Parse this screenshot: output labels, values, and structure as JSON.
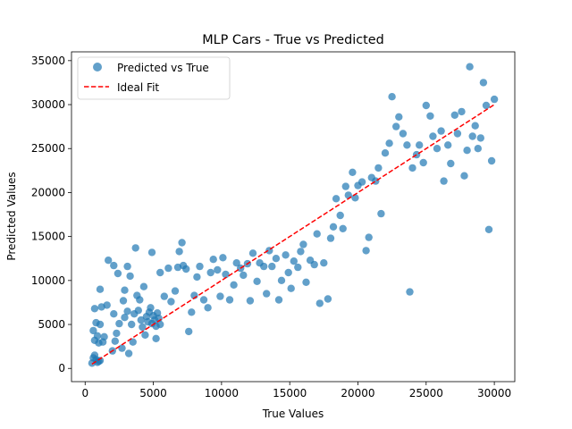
{
  "chart_data": {
    "type": "scatter",
    "title": "MLP Cars - True vs Predicted",
    "xlabel": "True Values",
    "ylabel": "Predicted Values",
    "xlim": [
      -1000,
      31500
    ],
    "ylim": [
      -1500,
      36000
    ],
    "xticks": [
      0,
      5000,
      10000,
      15000,
      20000,
      25000,
      30000
    ],
    "yticks": [
      0,
      5000,
      10000,
      15000,
      20000,
      25000,
      30000,
      35000
    ],
    "grid": false,
    "legend_position": "top-left",
    "series": [
      {
        "name": "Predicted vs True",
        "kind": "scatter",
        "color": "#1f77b4",
        "alpha": 0.7,
        "points": [
          [
            700,
            1500
          ],
          [
            800,
            1000
          ],
          [
            900,
            700
          ],
          [
            1000,
            800
          ],
          [
            500,
            600
          ],
          [
            600,
            1200
          ],
          [
            1100,
            900
          ],
          [
            600,
            4300
          ],
          [
            700,
            3200
          ],
          [
            800,
            5200
          ],
          [
            900,
            3700
          ],
          [
            1000,
            2900
          ],
          [
            1100,
            5000
          ],
          [
            1300,
            3000
          ],
          [
            1400,
            3600
          ],
          [
            1200,
            7000
          ],
          [
            1600,
            7200
          ],
          [
            1100,
            9000
          ],
          [
            700,
            6800
          ],
          [
            1700,
            12300
          ],
          [
            2000,
            2000
          ],
          [
            2200,
            3100
          ],
          [
            2300,
            4000
          ],
          [
            2500,
            5100
          ],
          [
            2100,
            6200
          ],
          [
            2700,
            2300
          ],
          [
            2100,
            11700
          ],
          [
            2400,
            10800
          ],
          [
            2800,
            7700
          ],
          [
            2900,
            8900
          ],
          [
            3100,
            6500
          ],
          [
            3300,
            10500
          ],
          [
            3700,
            13700
          ],
          [
            3100,
            11600
          ],
          [
            3500,
            3000
          ],
          [
            3200,
            1700
          ],
          [
            2900,
            5800
          ],
          [
            3400,
            5000
          ],
          [
            3600,
            6200
          ],
          [
            3800,
            8300
          ],
          [
            4000,
            7800
          ],
          [
            3900,
            6600
          ],
          [
            4100,
            5500
          ],
          [
            4200,
            4700
          ],
          [
            4400,
            3800
          ],
          [
            4500,
            5900
          ],
          [
            4600,
            5300
          ],
          [
            4700,
            6400
          ],
          [
            4800,
            6900
          ],
          [
            4900,
            5100
          ],
          [
            5000,
            6000
          ],
          [
            5100,
            5500
          ],
          [
            5200,
            4800
          ],
          [
            5300,
            6300
          ],
          [
            5400,
            5700
          ],
          [
            5500,
            5000
          ],
          [
            5200,
            3400
          ],
          [
            4300,
            9300
          ],
          [
            4900,
            13200
          ],
          [
            5500,
            10900
          ],
          [
            5800,
            8200
          ],
          [
            6100,
            11400
          ],
          [
            6300,
            7600
          ],
          [
            6600,
            8800
          ],
          [
            6800,
            11500
          ],
          [
            6900,
            13300
          ],
          [
            7100,
            14300
          ],
          [
            7200,
            11700
          ],
          [
            7400,
            11300
          ],
          [
            7600,
            4200
          ],
          [
            7800,
            6400
          ],
          [
            8000,
            8300
          ],
          [
            8200,
            10400
          ],
          [
            8400,
            11600
          ],
          [
            8700,
            7800
          ],
          [
            9000,
            6900
          ],
          [
            9200,
            10900
          ],
          [
            9400,
            12400
          ],
          [
            9700,
            11200
          ],
          [
            9900,
            8200
          ],
          [
            10100,
            12600
          ],
          [
            10300,
            10700
          ],
          [
            10600,
            7800
          ],
          [
            10900,
            9500
          ],
          [
            11100,
            12000
          ],
          [
            11400,
            11400
          ],
          [
            11600,
            10600
          ],
          [
            11900,
            11900
          ],
          [
            12100,
            7700
          ],
          [
            12300,
            13100
          ],
          [
            12600,
            9900
          ],
          [
            12800,
            12000
          ],
          [
            13100,
            11600
          ],
          [
            13300,
            8500
          ],
          [
            13500,
            13400
          ],
          [
            13700,
            11600
          ],
          [
            14000,
            12500
          ],
          [
            14200,
            7800
          ],
          [
            14400,
            10000
          ],
          [
            14700,
            12900
          ],
          [
            14900,
            10900
          ],
          [
            15100,
            9100
          ],
          [
            15300,
            12200
          ],
          [
            15600,
            11500
          ],
          [
            15800,
            13300
          ],
          [
            16000,
            14100
          ],
          [
            16200,
            9800
          ],
          [
            16500,
            12300
          ],
          [
            16800,
            11800
          ],
          [
            17000,
            15300
          ],
          [
            17200,
            7400
          ],
          [
            17500,
            12000
          ],
          [
            17800,
            7900
          ],
          [
            18000,
            14800
          ],
          [
            18200,
            16100
          ],
          [
            18400,
            19300
          ],
          [
            18700,
            17400
          ],
          [
            18900,
            15900
          ],
          [
            19100,
            20700
          ],
          [
            19300,
            19700
          ],
          [
            19600,
            22300
          ],
          [
            19800,
            19400
          ],
          [
            20000,
            20800
          ],
          [
            20300,
            21200
          ],
          [
            20600,
            13400
          ],
          [
            20800,
            14900
          ],
          [
            21000,
            21700
          ],
          [
            21300,
            21300
          ],
          [
            21500,
            22800
          ],
          [
            21700,
            17600
          ],
          [
            22000,
            24500
          ],
          [
            22300,
            25600
          ],
          [
            22500,
            30900
          ],
          [
            22800,
            27500
          ],
          [
            23000,
            28600
          ],
          [
            23300,
            26700
          ],
          [
            23600,
            25400
          ],
          [
            23800,
            8700
          ],
          [
            24000,
            22800
          ],
          [
            24300,
            24300
          ],
          [
            24500,
            25400
          ],
          [
            24800,
            23400
          ],
          [
            25000,
            29900
          ],
          [
            25300,
            28700
          ],
          [
            25500,
            26400
          ],
          [
            25800,
            25000
          ],
          [
            26100,
            27000
          ],
          [
            26300,
            21300
          ],
          [
            26600,
            25400
          ],
          [
            26800,
            23300
          ],
          [
            27100,
            28800
          ],
          [
            27300,
            26700
          ],
          [
            27600,
            29200
          ],
          [
            27800,
            21900
          ],
          [
            28000,
            24800
          ],
          [
            28200,
            34300
          ],
          [
            28400,
            26400
          ],
          [
            28600,
            27600
          ],
          [
            28800,
            25000
          ],
          [
            29000,
            26200
          ],
          [
            29200,
            32500
          ],
          [
            29400,
            29900
          ],
          [
            29600,
            15800
          ],
          [
            29800,
            23600
          ],
          [
            30000,
            30600
          ]
        ]
      },
      {
        "name": "Ideal Fit",
        "kind": "line",
        "color": "#ff0000",
        "dash": true,
        "x": [
          500,
          30000
        ],
        "y": [
          500,
          30000
        ]
      }
    ]
  }
}
